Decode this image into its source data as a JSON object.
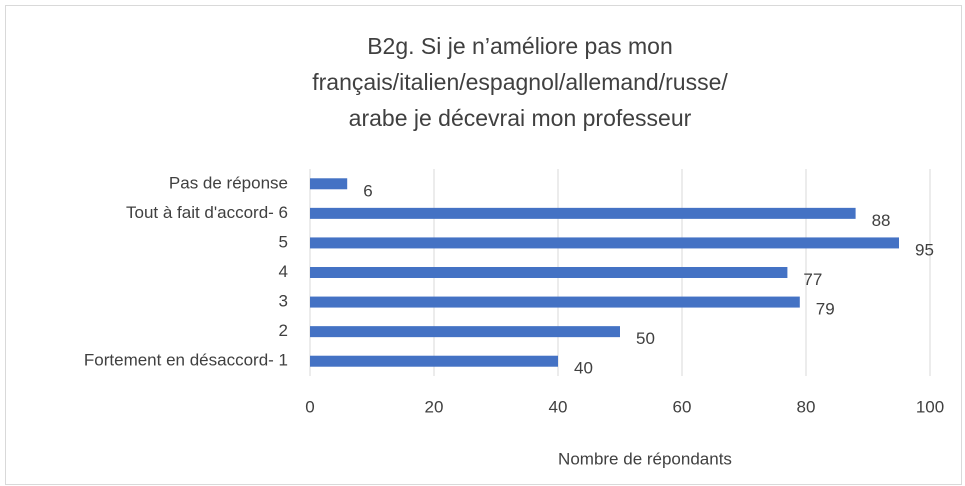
{
  "chart_data": {
    "type": "bar",
    "orientation": "horizontal",
    "title": [
      "B2g. Si je n’améliore pas mon",
      "français/italien/espagnol/allemand/russe/",
      "arabe je décevrai mon professeur"
    ],
    "categories": [
      "Pas de réponse",
      "Tout à fait d'accord- 6",
      "5",
      "4",
      "3",
      "2",
      "Fortement en désaccord- 1"
    ],
    "values": [
      6,
      88,
      95,
      77,
      79,
      50,
      40
    ],
    "color": "#4472c4",
    "xlim": [
      0,
      100
    ],
    "xticks": [
      0,
      20,
      40,
      60,
      80,
      100
    ],
    "x_label": "Nombre de répondants",
    "grid": true
  }
}
